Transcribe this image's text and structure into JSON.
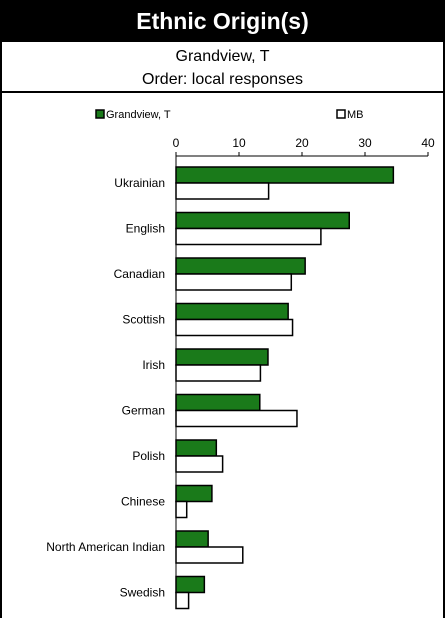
{
  "header": {
    "title": "Ethnic Origin(s)",
    "subtitle": "Grandview, T",
    "order": "Order: local responses"
  },
  "colors": {
    "local": "#1a7a1a",
    "province": "#ffffff"
  },
  "chart_data": {
    "type": "bar",
    "orientation": "horizontal",
    "categories": [
      "Ukrainian",
      "English",
      "Canadian",
      "Scottish",
      "Irish",
      "German",
      "Polish",
      "Chinese",
      "North American Indian",
      "Swedish"
    ],
    "series": [
      {
        "name": "Grandview, T",
        "values": [
          34.5,
          27.5,
          20.5,
          17.8,
          14.6,
          13.3,
          6.4,
          5.7,
          5.1,
          4.5
        ],
        "color": "#1a7a1a"
      },
      {
        "name": "MB",
        "values": [
          14.7,
          23.0,
          18.3,
          18.5,
          13.4,
          19.2,
          7.4,
          1.7,
          10.6,
          2.0
        ],
        "color": "#ffffff"
      }
    ],
    "xlim": [
      0,
      40
    ],
    "xticks": [
      0,
      10,
      20,
      30,
      40
    ],
    "legend": "top",
    "grid": false
  }
}
